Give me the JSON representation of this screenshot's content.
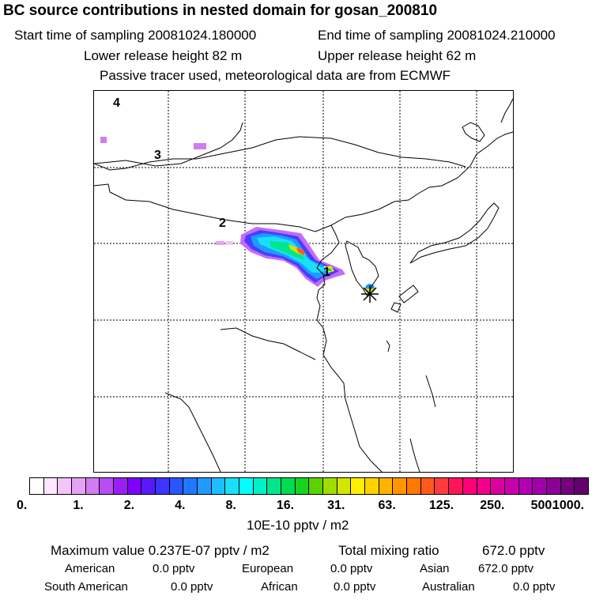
{
  "header": {
    "title": "BC  source contributions in nested domain for gosan_200810",
    "start_time": "Start time of sampling 20081024.180000",
    "end_time": "End time of sampling 20081024.210000",
    "lower_height": "Lower release height   82 m",
    "upper_height": "Upper release height   62 m",
    "tracer_note": "Passive tracer used, meteorological data are from ECMWF"
  },
  "map": {
    "labels": [
      "1",
      "2",
      "3",
      "4"
    ],
    "receptor_icon": "asterisk-star-icon"
  },
  "legend": {
    "ticks": [
      "0.",
      "1.",
      "2.",
      "4.",
      "8.",
      "16.",
      "31.",
      "63.",
      "125.",
      "250.",
      "500.",
      "1000."
    ],
    "colors": [
      "#ffffff",
      "#ffe6ff",
      "#f2c6fa",
      "#e6a3f5",
      "#d27cf2",
      "#b84df0",
      "#9b1ef2",
      "#8000ff",
      "#5a18ff",
      "#3a35ff",
      "#2b55ff",
      "#1f78ff",
      "#1f9bff",
      "#1fbdff",
      "#19dfff",
      "#00ffff",
      "#00f0c8",
      "#00e68c",
      "#00dc50",
      "#19d21e",
      "#5ad200",
      "#a0dc00",
      "#d2e600",
      "#fff000",
      "#ffd200",
      "#ffb400",
      "#ff9600",
      "#ff7800",
      "#ff5a1e",
      "#ff3c3c",
      "#ff145a",
      "#ff0078",
      "#f0008c",
      "#dc00a0",
      "#c800aa",
      "#b400b4",
      "#a000aa",
      "#8c0096",
      "#780082",
      "#64006e"
    ],
    "units": "10E-10 pptv / m2"
  },
  "stats": {
    "max_label": "Maximum value  0.237E-07 pptv / m2",
    "total_label": "Total mixing ratio",
    "total_value": "672.0 pptv",
    "regions": [
      {
        "name": "American",
        "value": "0.0 pptv"
      },
      {
        "name": "European",
        "value": "0.0 pptv"
      },
      {
        "name": "Asian",
        "value": "672.0 pptv"
      },
      {
        "name": "South American",
        "value": "0.0 pptv"
      },
      {
        "name": "African",
        "value": "0.0 pptv"
      },
      {
        "name": "Australian",
        "value": "0.0 pptv"
      }
    ]
  }
}
